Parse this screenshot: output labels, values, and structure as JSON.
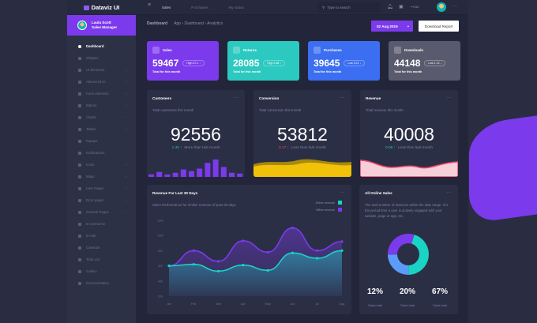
{
  "app": {
    "title": "Dataviz UI"
  },
  "topnav": {
    "items": [
      "Sales",
      "Purchases",
      "My status"
    ],
    "search_placeholder": "Type to search",
    "lang": "Aus"
  },
  "user": {
    "name": "Laula Scott",
    "role": "Sales Manager"
  },
  "sidebar": {
    "items": [
      {
        "label": "Dashboard",
        "active": true,
        "sub": false
      },
      {
        "label": "Widgets",
        "sub": false
      },
      {
        "label": "UI Elements",
        "sub": true
      },
      {
        "label": "Advanced UI",
        "sub": true
      },
      {
        "label": "Form elements",
        "sub": true
      },
      {
        "label": "Editors",
        "sub": true
      },
      {
        "label": "Charts",
        "sub": true
      },
      {
        "label": "Tables",
        "sub": true
      },
      {
        "label": "Popups",
        "sub": false
      },
      {
        "label": "Notifications",
        "sub": false
      },
      {
        "label": "Icons",
        "sub": true
      },
      {
        "label": "Maps",
        "sub": true
      },
      {
        "label": "User Pages",
        "sub": true
      },
      {
        "label": "Error pages",
        "sub": true
      },
      {
        "label": "General Pages",
        "sub": true
      },
      {
        "label": "E-commerce",
        "sub": true
      },
      {
        "label": "E-mail",
        "sub": false
      },
      {
        "label": "Calendar",
        "sub": false
      },
      {
        "label": "Todo List",
        "sub": false
      },
      {
        "label": "Gallery",
        "sub": false
      },
      {
        "label": "Documentation",
        "sub": false
      }
    ]
  },
  "header": {
    "title": "Dashboard",
    "breadcrumb": "App › Dashboard › Analytics",
    "date": "02 Aug 2019",
    "download": "Download Report"
  },
  "stats": [
    {
      "label": "Sales",
      "value": "59467",
      "pill": "High  37.1 ↑",
      "sub": "Total for this month",
      "color": "#7c3aed"
    },
    {
      "label": "Returns",
      "value": "28085",
      "pill": "High  2.68 ↑",
      "sub": "Total for this month",
      "color": "#2bc9bf"
    },
    {
      "label": "Purchases",
      "value": "39645",
      "pill": "Low  0.21 ↓",
      "sub": "Total for this month",
      "color": "#3b6ef0"
    },
    {
      "label": "Downloads",
      "value": "44148",
      "pill": "Low  1.12 ↓",
      "sub": "Total for this month",
      "color": "#595a6d"
    }
  ],
  "kpis": [
    {
      "title": "Customers",
      "sub": "Total customers this month",
      "value": "92556",
      "change": "1.35 ↑",
      "note": "More than last month",
      "dir": "up",
      "bars": [
        3,
        6,
        3,
        5,
        9,
        7,
        10,
        17,
        21,
        12,
        5,
        4
      ],
      "color": "#7c3aed"
    },
    {
      "title": "Conversion",
      "sub": "Total conversion this month",
      "value": "53812",
      "change": "0.17 ↓",
      "note": "Less than last month",
      "dir": "down",
      "color": "#f0c20a"
    },
    {
      "title": "Revenue",
      "sub": "Total revenue this month",
      "value": "40008",
      "change": "0.06 ↑",
      "note": "Less than last month",
      "dir": "up",
      "color": "#f0466c"
    }
  ],
  "revenue": {
    "title": "Revenue For Last 30 Days",
    "sub": "Sales Performance for Online revenue of past 30 days",
    "more": "···"
  },
  "chart_data": {
    "type": "area",
    "categories": [
      "Jan",
      "Feb",
      "Mar",
      "Apr",
      "May",
      "Jun",
      "Jul",
      "Aug"
    ],
    "series": [
      {
        "name": "Online revenue",
        "color": "#19d3c5",
        "values": [
          600,
          620,
          530,
          610,
          540,
          770,
          700,
          800
        ]
      },
      {
        "name": "Offline revenue",
        "color": "#7c3aed",
        "values": [
          600,
          800,
          660,
          930,
          780,
          1100,
          800,
          920
        ]
      }
    ],
    "yticks": [
      200,
      400,
      600,
      800,
      1000,
      1200
    ],
    "ylim": [
      200,
      1200
    ],
    "grid": false
  },
  "online": {
    "title": "All Online Sales",
    "sub": "The total number of sessions within the date range. It is the period time a user is actively engaged with your website, page or app, etc.",
    "donut": [
      {
        "value": 45,
        "color": "#19d3c5"
      },
      {
        "value": 25,
        "color": "#5a9cf8"
      },
      {
        "value": 30,
        "color": "#7c3aed"
      }
    ],
    "pcts": [
      {
        "v": "12%",
        "l": "Sales total"
      },
      {
        "v": "20%",
        "l": "Sales total"
      },
      {
        "v": "67%",
        "l": "Sales total"
      }
    ]
  }
}
